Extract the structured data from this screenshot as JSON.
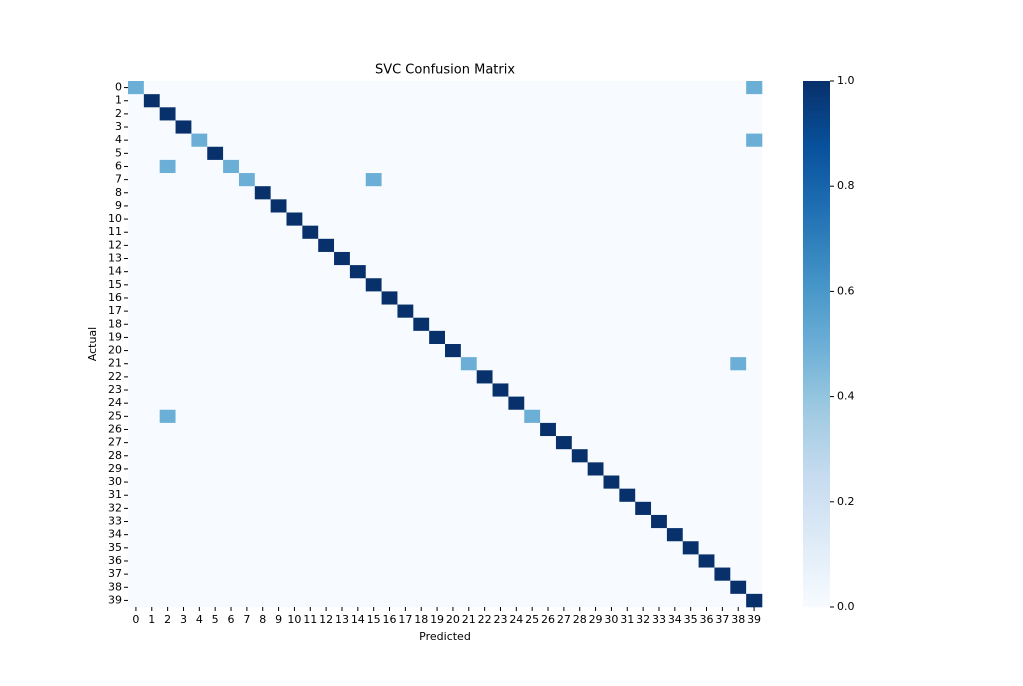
{
  "chart_data": {
    "type": "heatmap",
    "title": "SVC Confusion Matrix",
    "xlabel": "Predicted",
    "ylabel": "Actual",
    "x": [
      0,
      1,
      2,
      3,
      4,
      5,
      6,
      7,
      8,
      9,
      10,
      11,
      12,
      13,
      14,
      15,
      16,
      17,
      18,
      19,
      20,
      21,
      22,
      23,
      24,
      25,
      26,
      27,
      28,
      29,
      30,
      31,
      32,
      33,
      34,
      35,
      36,
      37,
      38,
      39
    ],
    "y": [
      0,
      1,
      2,
      3,
      4,
      5,
      6,
      7,
      8,
      9,
      10,
      11,
      12,
      13,
      14,
      15,
      16,
      17,
      18,
      19,
      20,
      21,
      22,
      23,
      24,
      25,
      26,
      27,
      28,
      29,
      30,
      31,
      32,
      33,
      34,
      35,
      36,
      37,
      38,
      39
    ],
    "colormap": "Blues",
    "clim": [
      0,
      1
    ],
    "cticks": [
      {
        "value": 0,
        "label": "0.0"
      },
      0.2,
      0.4,
      0.6,
      0.8,
      {
        "value": 1,
        "label": "1.0"
      }
    ],
    "z": [
      [
        0.5,
        0,
        0,
        0,
        0,
        0,
        0,
        0,
        0,
        0,
        0,
        0,
        0,
        0,
        0,
        0,
        0,
        0,
        0,
        0,
        0,
        0,
        0,
        0,
        0,
        0,
        0,
        0,
        0,
        0,
        0,
        0,
        0,
        0,
        0,
        0,
        0,
        0,
        0,
        0.5
      ],
      [
        0,
        1,
        0,
        0,
        0,
        0,
        0,
        0,
        0,
        0,
        0,
        0,
        0,
        0,
        0,
        0,
        0,
        0,
        0,
        0,
        0,
        0,
        0,
        0,
        0,
        0,
        0,
        0,
        0,
        0,
        0,
        0,
        0,
        0,
        0,
        0,
        0,
        0,
        0,
        0
      ],
      [
        0,
        0,
        1,
        0,
        0,
        0,
        0,
        0,
        0,
        0,
        0,
        0,
        0,
        0,
        0,
        0,
        0,
        0,
        0,
        0,
        0,
        0,
        0,
        0,
        0,
        0,
        0,
        0,
        0,
        0,
        0,
        0,
        0,
        0,
        0,
        0,
        0,
        0,
        0,
        0
      ],
      [
        0,
        0,
        0,
        1,
        0,
        0,
        0,
        0,
        0,
        0,
        0,
        0,
        0,
        0,
        0,
        0,
        0,
        0,
        0,
        0,
        0,
        0,
        0,
        0,
        0,
        0,
        0,
        0,
        0,
        0,
        0,
        0,
        0,
        0,
        0,
        0,
        0,
        0,
        0,
        0
      ],
      [
        0,
        0,
        0,
        0,
        0.5,
        0,
        0,
        0,
        0,
        0,
        0,
        0,
        0,
        0,
        0,
        0,
        0,
        0,
        0,
        0,
        0,
        0,
        0,
        0,
        0,
        0,
        0,
        0,
        0,
        0,
        0,
        0,
        0,
        0,
        0,
        0,
        0,
        0,
        0,
        0.5
      ],
      [
        0,
        0,
        0,
        0,
        0,
        1,
        0,
        0,
        0,
        0,
        0,
        0,
        0,
        0,
        0,
        0,
        0,
        0,
        0,
        0,
        0,
        0,
        0,
        0,
        0,
        0,
        0,
        0,
        0,
        0,
        0,
        0,
        0,
        0,
        0,
        0,
        0,
        0,
        0,
        0
      ],
      [
        0,
        0,
        0.5,
        0,
        0,
        0,
        0.5,
        0,
        0,
        0,
        0,
        0,
        0,
        0,
        0,
        0,
        0,
        0,
        0,
        0,
        0,
        0,
        0,
        0,
        0,
        0,
        0,
        0,
        0,
        0,
        0,
        0,
        0,
        0,
        0,
        0,
        0,
        0,
        0,
        0
      ],
      [
        0,
        0,
        0,
        0,
        0,
        0,
        0,
        0.5,
        0,
        0,
        0,
        0,
        0,
        0,
        0,
        0.5,
        0,
        0,
        0,
        0,
        0,
        0,
        0,
        0,
        0,
        0,
        0,
        0,
        0,
        0,
        0,
        0,
        0,
        0,
        0,
        0,
        0,
        0,
        0,
        0
      ],
      [
        0,
        0,
        0,
        0,
        0,
        0,
        0,
        0,
        1,
        0,
        0,
        0,
        0,
        0,
        0,
        0,
        0,
        0,
        0,
        0,
        0,
        0,
        0,
        0,
        0,
        0,
        0,
        0,
        0,
        0,
        0,
        0,
        0,
        0,
        0,
        0,
        0,
        0,
        0,
        0
      ],
      [
        0,
        0,
        0,
        0,
        0,
        0,
        0,
        0,
        0,
        1,
        0,
        0,
        0,
        0,
        0,
        0,
        0,
        0,
        0,
        0,
        0,
        0,
        0,
        0,
        0,
        0,
        0,
        0,
        0,
        0,
        0,
        0,
        0,
        0,
        0,
        0,
        0,
        0,
        0,
        0
      ],
      [
        0,
        0,
        0,
        0,
        0,
        0,
        0,
        0,
        0,
        0,
        1,
        0,
        0,
        0,
        0,
        0,
        0,
        0,
        0,
        0,
        0,
        0,
        0,
        0,
        0,
        0,
        0,
        0,
        0,
        0,
        0,
        0,
        0,
        0,
        0,
        0,
        0,
        0,
        0,
        0
      ],
      [
        0,
        0,
        0,
        0,
        0,
        0,
        0,
        0,
        0,
        0,
        0,
        1,
        0,
        0,
        0,
        0,
        0,
        0,
        0,
        0,
        0,
        0,
        0,
        0,
        0,
        0,
        0,
        0,
        0,
        0,
        0,
        0,
        0,
        0,
        0,
        0,
        0,
        0,
        0,
        0
      ],
      [
        0,
        0,
        0,
        0,
        0,
        0,
        0,
        0,
        0,
        0,
        0,
        0,
        1,
        0,
        0,
        0,
        0,
        0,
        0,
        0,
        0,
        0,
        0,
        0,
        0,
        0,
        0,
        0,
        0,
        0,
        0,
        0,
        0,
        0,
        0,
        0,
        0,
        0,
        0,
        0
      ],
      [
        0,
        0,
        0,
        0,
        0,
        0,
        0,
        0,
        0,
        0,
        0,
        0,
        0,
        1,
        0,
        0,
        0,
        0,
        0,
        0,
        0,
        0,
        0,
        0,
        0,
        0,
        0,
        0,
        0,
        0,
        0,
        0,
        0,
        0,
        0,
        0,
        0,
        0,
        0,
        0
      ],
      [
        0,
        0,
        0,
        0,
        0,
        0,
        0,
        0,
        0,
        0,
        0,
        0,
        0,
        0,
        1,
        0,
        0,
        0,
        0,
        0,
        0,
        0,
        0,
        0,
        0,
        0,
        0,
        0,
        0,
        0,
        0,
        0,
        0,
        0,
        0,
        0,
        0,
        0,
        0,
        0
      ],
      [
        0,
        0,
        0,
        0,
        0,
        0,
        0,
        0,
        0,
        0,
        0,
        0,
        0,
        0,
        0,
        1,
        0,
        0,
        0,
        0,
        0,
        0,
        0,
        0,
        0,
        0,
        0,
        0,
        0,
        0,
        0,
        0,
        0,
        0,
        0,
        0,
        0,
        0,
        0,
        0
      ],
      [
        0,
        0,
        0,
        0,
        0,
        0,
        0,
        0,
        0,
        0,
        0,
        0,
        0,
        0,
        0,
        0,
        1,
        0,
        0,
        0,
        0,
        0,
        0,
        0,
        0,
        0,
        0,
        0,
        0,
        0,
        0,
        0,
        0,
        0,
        0,
        0,
        0,
        0,
        0,
        0
      ],
      [
        0,
        0,
        0,
        0,
        0,
        0,
        0,
        0,
        0,
        0,
        0,
        0,
        0,
        0,
        0,
        0,
        0,
        1,
        0,
        0,
        0,
        0,
        0,
        0,
        0,
        0,
        0,
        0,
        0,
        0,
        0,
        0,
        0,
        0,
        0,
        0,
        0,
        0,
        0,
        0
      ],
      [
        0,
        0,
        0,
        0,
        0,
        0,
        0,
        0,
        0,
        0,
        0,
        0,
        0,
        0,
        0,
        0,
        0,
        0,
        1,
        0,
        0,
        0,
        0,
        0,
        0,
        0,
        0,
        0,
        0,
        0,
        0,
        0,
        0,
        0,
        0,
        0,
        0,
        0,
        0,
        0
      ],
      [
        0,
        0,
        0,
        0,
        0,
        0,
        0,
        0,
        0,
        0,
        0,
        0,
        0,
        0,
        0,
        0,
        0,
        0,
        0,
        1,
        0,
        0,
        0,
        0,
        0,
        0,
        0,
        0,
        0,
        0,
        0,
        0,
        0,
        0,
        0,
        0,
        0,
        0,
        0,
        0
      ],
      [
        0,
        0,
        0,
        0,
        0,
        0,
        0,
        0,
        0,
        0,
        0,
        0,
        0,
        0,
        0,
        0,
        0,
        0,
        0,
        0,
        1,
        0,
        0,
        0,
        0,
        0,
        0,
        0,
        0,
        0,
        0,
        0,
        0,
        0,
        0,
        0,
        0,
        0,
        0,
        0
      ],
      [
        0,
        0,
        0,
        0,
        0,
        0,
        0,
        0,
        0,
        0,
        0,
        0,
        0,
        0,
        0,
        0,
        0,
        0,
        0,
        0,
        0,
        0.5,
        0,
        0,
        0,
        0,
        0,
        0,
        0,
        0,
        0,
        0,
        0,
        0,
        0,
        0,
        0,
        0,
        0.5,
        0
      ],
      [
        0,
        0,
        0,
        0,
        0,
        0,
        0,
        0,
        0,
        0,
        0,
        0,
        0,
        0,
        0,
        0,
        0,
        0,
        0,
        0,
        0,
        0,
        1,
        0,
        0,
        0,
        0,
        0,
        0,
        0,
        0,
        0,
        0,
        0,
        0,
        0,
        0,
        0,
        0,
        0
      ],
      [
        0,
        0,
        0,
        0,
        0,
        0,
        0,
        0,
        0,
        0,
        0,
        0,
        0,
        0,
        0,
        0,
        0,
        0,
        0,
        0,
        0,
        0,
        0,
        1,
        0,
        0,
        0,
        0,
        0,
        0,
        0,
        0,
        0,
        0,
        0,
        0,
        0,
        0,
        0,
        0
      ],
      [
        0,
        0,
        0,
        0,
        0,
        0,
        0,
        0,
        0,
        0,
        0,
        0,
        0,
        0,
        0,
        0,
        0,
        0,
        0,
        0,
        0,
        0,
        0,
        0,
        1,
        0,
        0,
        0,
        0,
        0,
        0,
        0,
        0,
        0,
        0,
        0,
        0,
        0,
        0,
        0
      ],
      [
        0,
        0,
        0.5,
        0,
        0,
        0,
        0,
        0,
        0,
        0,
        0,
        0,
        0,
        0,
        0,
        0,
        0,
        0,
        0,
        0,
        0,
        0,
        0,
        0,
        0,
        0.5,
        0,
        0,
        0,
        0,
        0,
        0,
        0,
        0,
        0,
        0,
        0,
        0,
        0,
        0
      ],
      [
        0,
        0,
        0,
        0,
        0,
        0,
        0,
        0,
        0,
        0,
        0,
        0,
        0,
        0,
        0,
        0,
        0,
        0,
        0,
        0,
        0,
        0,
        0,
        0,
        0,
        0,
        1,
        0,
        0,
        0,
        0,
        0,
        0,
        0,
        0,
        0,
        0,
        0,
        0,
        0
      ],
      [
        0,
        0,
        0,
        0,
        0,
        0,
        0,
        0,
        0,
        0,
        0,
        0,
        0,
        0,
        0,
        0,
        0,
        0,
        0,
        0,
        0,
        0,
        0,
        0,
        0,
        0,
        0,
        1,
        0,
        0,
        0,
        0,
        0,
        0,
        0,
        0,
        0,
        0,
        0,
        0
      ],
      [
        0,
        0,
        0,
        0,
        0,
        0,
        0,
        0,
        0,
        0,
        0,
        0,
        0,
        0,
        0,
        0,
        0,
        0,
        0,
        0,
        0,
        0,
        0,
        0,
        0,
        0,
        0,
        0,
        1,
        0,
        0,
        0,
        0,
        0,
        0,
        0,
        0,
        0,
        0,
        0
      ],
      [
        0,
        0,
        0,
        0,
        0,
        0,
        0,
        0,
        0,
        0,
        0,
        0,
        0,
        0,
        0,
        0,
        0,
        0,
        0,
        0,
        0,
        0,
        0,
        0,
        0,
        0,
        0,
        0,
        0,
        1,
        0,
        0,
        0,
        0,
        0,
        0,
        0,
        0,
        0,
        0
      ],
      [
        0,
        0,
        0,
        0,
        0,
        0,
        0,
        0,
        0,
        0,
        0,
        0,
        0,
        0,
        0,
        0,
        0,
        0,
        0,
        0,
        0,
        0,
        0,
        0,
        0,
        0,
        0,
        0,
        0,
        0,
        1,
        0,
        0,
        0,
        0,
        0,
        0,
        0,
        0,
        0
      ],
      [
        0,
        0,
        0,
        0,
        0,
        0,
        0,
        0,
        0,
        0,
        0,
        0,
        0,
        0,
        0,
        0,
        0,
        0,
        0,
        0,
        0,
        0,
        0,
        0,
        0,
        0,
        0,
        0,
        0,
        0,
        0,
        1,
        0,
        0,
        0,
        0,
        0,
        0,
        0,
        0
      ],
      [
        0,
        0,
        0,
        0,
        0,
        0,
        0,
        0,
        0,
        0,
        0,
        0,
        0,
        0,
        0,
        0,
        0,
        0,
        0,
        0,
        0,
        0,
        0,
        0,
        0,
        0,
        0,
        0,
        0,
        0,
        0,
        0,
        1,
        0,
        0,
        0,
        0,
        0,
        0,
        0
      ],
      [
        0,
        0,
        0,
        0,
        0,
        0,
        0,
        0,
        0,
        0,
        0,
        0,
        0,
        0,
        0,
        0,
        0,
        0,
        0,
        0,
        0,
        0,
        0,
        0,
        0,
        0,
        0,
        0,
        0,
        0,
        0,
        0,
        0,
        1,
        0,
        0,
        0,
        0,
        0,
        0
      ],
      [
        0,
        0,
        0,
        0,
        0,
        0,
        0,
        0,
        0,
        0,
        0,
        0,
        0,
        0,
        0,
        0,
        0,
        0,
        0,
        0,
        0,
        0,
        0,
        0,
        0,
        0,
        0,
        0,
        0,
        0,
        0,
        0,
        0,
        0,
        1,
        0,
        0,
        0,
        0,
        0
      ],
      [
        0,
        0,
        0,
        0,
        0,
        0,
        0,
        0,
        0,
        0,
        0,
        0,
        0,
        0,
        0,
        0,
        0,
        0,
        0,
        0,
        0,
        0,
        0,
        0,
        0,
        0,
        0,
        0,
        0,
        0,
        0,
        0,
        0,
        0,
        0,
        1,
        0,
        0,
        0,
        0
      ],
      [
        0,
        0,
        0,
        0,
        0,
        0,
        0,
        0,
        0,
        0,
        0,
        0,
        0,
        0,
        0,
        0,
        0,
        0,
        0,
        0,
        0,
        0,
        0,
        0,
        0,
        0,
        0,
        0,
        0,
        0,
        0,
        0,
        0,
        0,
        0,
        0,
        1,
        0,
        0,
        0
      ],
      [
        0,
        0,
        0,
        0,
        0,
        0,
        0,
        0,
        0,
        0,
        0,
        0,
        0,
        0,
        0,
        0,
        0,
        0,
        0,
        0,
        0,
        0,
        0,
        0,
        0,
        0,
        0,
        0,
        0,
        0,
        0,
        0,
        0,
        0,
        0,
        0,
        0,
        1,
        0,
        0
      ],
      [
        0,
        0,
        0,
        0,
        0,
        0,
        0,
        0,
        0,
        0,
        0,
        0,
        0,
        0,
        0,
        0,
        0,
        0,
        0,
        0,
        0,
        0,
        0,
        0,
        0,
        0,
        0,
        0,
        0,
        0,
        0,
        0,
        0,
        0,
        0,
        0,
        0,
        0,
        1,
        0
      ],
      [
        0,
        0,
        0,
        0,
        0,
        0,
        0,
        0,
        0,
        0,
        0,
        0,
        0,
        0,
        0,
        0,
        0,
        0,
        0,
        0,
        0,
        0,
        0,
        0,
        0,
        0,
        0,
        0,
        0,
        0,
        0,
        0,
        0,
        0,
        0,
        0,
        0,
        0,
        0,
        1
      ]
    ]
  }
}
